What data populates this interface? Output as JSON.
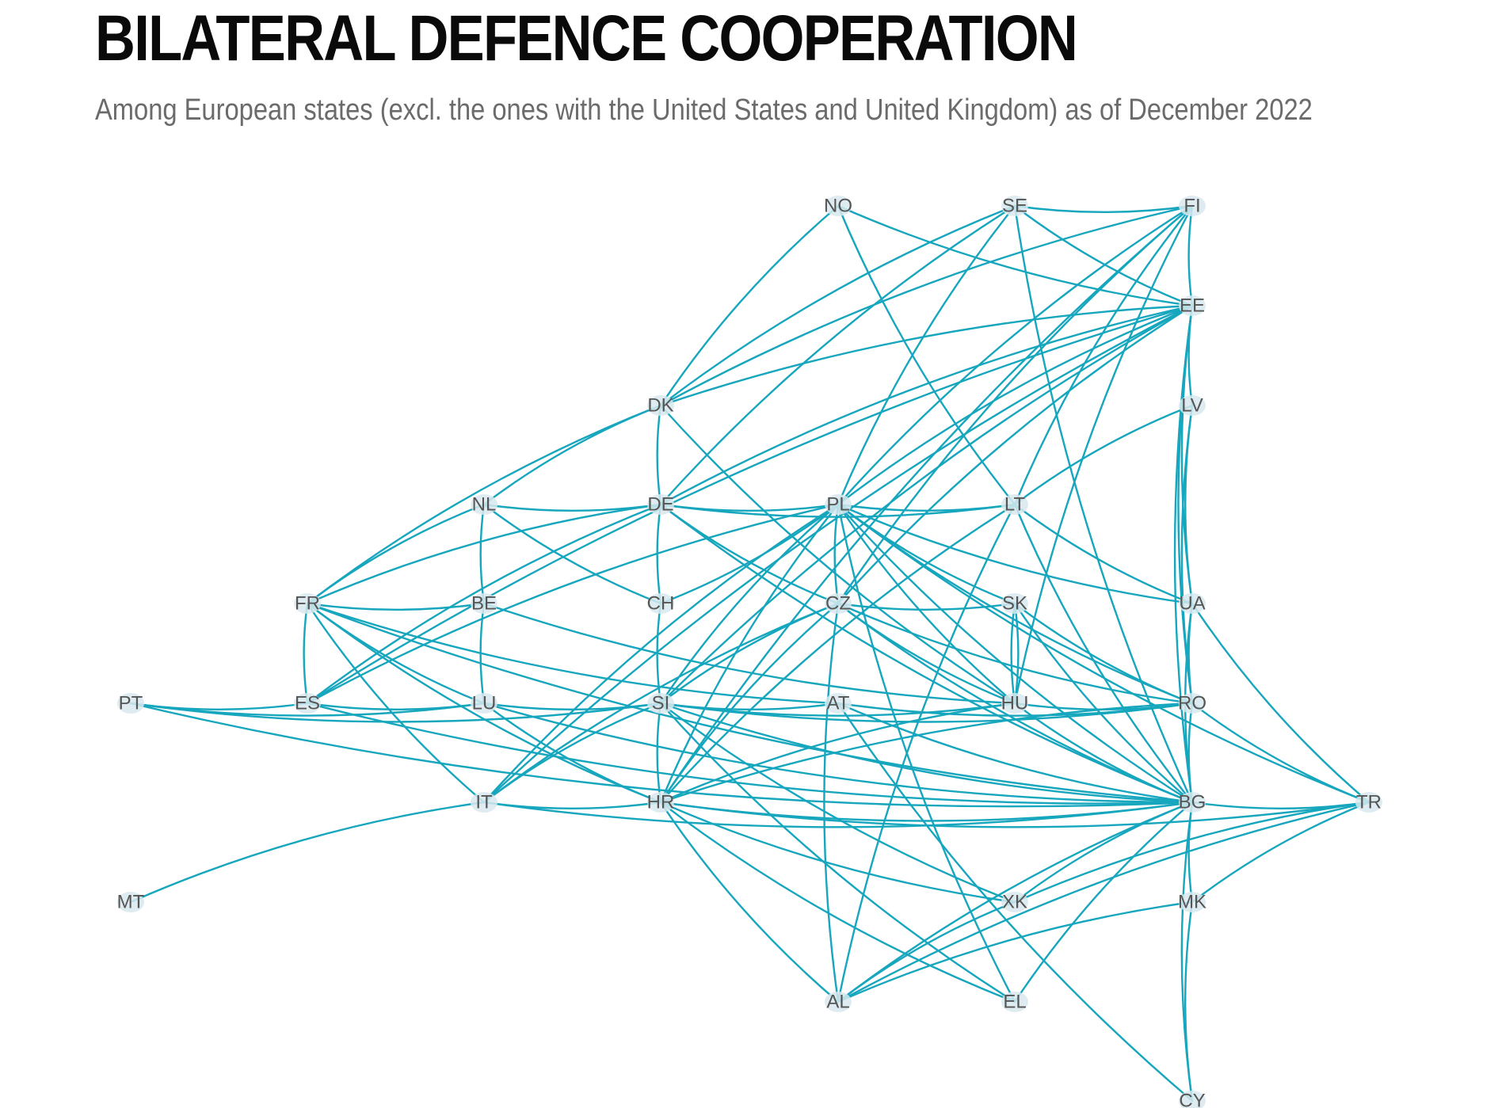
{
  "header": {
    "title": "BILATERAL DEFENCE COOPERATION",
    "subtitle": "Among European states (excl. the ones with the United States and United Kingdom) as of December 2022"
  },
  "colors": {
    "edge": "#16a6bd",
    "label": "#555555",
    "halo": "#d8e9ee"
  },
  "network": {
    "nodes": [
      {
        "id": "NO",
        "label": "NO"
      },
      {
        "id": "SE",
        "label": "SE"
      },
      {
        "id": "FI",
        "label": "FI"
      },
      {
        "id": "EE",
        "label": "EE"
      },
      {
        "id": "DK",
        "label": "DK"
      },
      {
        "id": "LV",
        "label": "LV"
      },
      {
        "id": "NL",
        "label": "NL"
      },
      {
        "id": "DE",
        "label": "DE"
      },
      {
        "id": "PL",
        "label": "PL"
      },
      {
        "id": "LT",
        "label": "LT"
      },
      {
        "id": "FR",
        "label": "FR"
      },
      {
        "id": "BE",
        "label": "BE"
      },
      {
        "id": "CH",
        "label": "CH"
      },
      {
        "id": "CZ",
        "label": "CZ"
      },
      {
        "id": "SK",
        "label": "SK"
      },
      {
        "id": "UA",
        "label": "UA"
      },
      {
        "id": "PT",
        "label": "PT"
      },
      {
        "id": "ES",
        "label": "ES"
      },
      {
        "id": "LU",
        "label": "LU"
      },
      {
        "id": "SI",
        "label": "SI"
      },
      {
        "id": "AT",
        "label": "AT"
      },
      {
        "id": "HU",
        "label": "HU"
      },
      {
        "id": "RO",
        "label": "RO"
      },
      {
        "id": "IT",
        "label": "IT"
      },
      {
        "id": "HR",
        "label": "HR"
      },
      {
        "id": "BG",
        "label": "BG"
      },
      {
        "id": "TR",
        "label": "TR"
      },
      {
        "id": "MT",
        "label": "MT"
      },
      {
        "id": "XK",
        "label": "XK"
      },
      {
        "id": "MK",
        "label": "MK"
      },
      {
        "id": "AL",
        "label": "AL"
      },
      {
        "id": "EL",
        "label": "EL"
      },
      {
        "id": "CY",
        "label": "CY"
      }
    ],
    "edges": [
      [
        "SE",
        "FI"
      ],
      [
        "SE",
        "EE"
      ],
      [
        "SE",
        "DK"
      ],
      [
        "SE",
        "DE"
      ],
      [
        "SE",
        "PL"
      ],
      [
        "SE",
        "BG"
      ],
      [
        "NO",
        "EE"
      ],
      [
        "NO",
        "DK"
      ],
      [
        "NO",
        "LT"
      ],
      [
        "FI",
        "EE"
      ],
      [
        "FI",
        "DK"
      ],
      [
        "FI",
        "PL"
      ],
      [
        "FI",
        "LT"
      ],
      [
        "FI",
        "CZ"
      ],
      [
        "FI",
        "HU"
      ],
      [
        "FI",
        "HR"
      ],
      [
        "EE",
        "DK"
      ],
      [
        "EE",
        "DE"
      ],
      [
        "EE",
        "PL"
      ],
      [
        "EE",
        "LV"
      ],
      [
        "EE",
        "UA"
      ],
      [
        "EE",
        "BG"
      ],
      [
        "EE",
        "SI"
      ],
      [
        "EE",
        "ES"
      ],
      [
        "EE",
        "IT"
      ],
      [
        "EE",
        "RO"
      ],
      [
        "EE",
        "CZ"
      ],
      [
        "LV",
        "LT"
      ],
      [
        "LV",
        "UA"
      ],
      [
        "LV",
        "RO"
      ],
      [
        "DK",
        "NL"
      ],
      [
        "DK",
        "DE"
      ],
      [
        "DK",
        "FR"
      ],
      [
        "DK",
        "HU"
      ],
      [
        "NL",
        "DE"
      ],
      [
        "NL",
        "BE"
      ],
      [
        "NL",
        "FR"
      ],
      [
        "NL",
        "CH"
      ],
      [
        "DE",
        "PL"
      ],
      [
        "DE",
        "FR"
      ],
      [
        "DE",
        "ES"
      ],
      [
        "DE",
        "CH"
      ],
      [
        "DE",
        "LT"
      ],
      [
        "DE",
        "CZ"
      ],
      [
        "DE",
        "BG"
      ],
      [
        "PL",
        "LT"
      ],
      [
        "PL",
        "CZ"
      ],
      [
        "PL",
        "SK"
      ],
      [
        "PL",
        "HU"
      ],
      [
        "PL",
        "SI"
      ],
      [
        "PL",
        "HR"
      ],
      [
        "PL",
        "IT"
      ],
      [
        "PL",
        "ES"
      ],
      [
        "PL",
        "BG"
      ],
      [
        "PL",
        "RO"
      ],
      [
        "PL",
        "EL"
      ],
      [
        "PL",
        "TR"
      ],
      [
        "PL",
        "UA"
      ],
      [
        "LT",
        "UA"
      ],
      [
        "LT",
        "BG"
      ],
      [
        "LT",
        "HR"
      ],
      [
        "LT",
        "AL"
      ],
      [
        "FR",
        "BE"
      ],
      [
        "FR",
        "ES"
      ],
      [
        "FR",
        "LU"
      ],
      [
        "FR",
        "IT"
      ],
      [
        "FR",
        "HR"
      ],
      [
        "FR",
        "AT"
      ],
      [
        "FR",
        "BG"
      ],
      [
        "BE",
        "LU"
      ],
      [
        "BE",
        "HU"
      ],
      [
        "CH",
        "SI"
      ],
      [
        "CH",
        "PL"
      ],
      [
        "CZ",
        "SK"
      ],
      [
        "CZ",
        "SI"
      ],
      [
        "CZ",
        "HU"
      ],
      [
        "CZ",
        "BG"
      ],
      [
        "CZ",
        "RO"
      ],
      [
        "CZ",
        "HR"
      ],
      [
        "CZ",
        "AL"
      ],
      [
        "CZ",
        "IT"
      ],
      [
        "SK",
        "HU"
      ],
      [
        "SK",
        "BG"
      ],
      [
        "SK",
        "RO"
      ],
      [
        "UA",
        "RO"
      ],
      [
        "UA",
        "BG"
      ],
      [
        "UA",
        "TR"
      ],
      [
        "PT",
        "ES"
      ],
      [
        "PT",
        "LU"
      ],
      [
        "PT",
        "BG"
      ],
      [
        "PT",
        "SI"
      ],
      [
        "ES",
        "LU"
      ],
      [
        "ES",
        "BG"
      ],
      [
        "LU",
        "SI"
      ],
      [
        "LU",
        "HR"
      ],
      [
        "LU",
        "BG"
      ],
      [
        "SI",
        "HR"
      ],
      [
        "SI",
        "IT"
      ],
      [
        "SI",
        "AT"
      ],
      [
        "SI",
        "BG"
      ],
      [
        "SI",
        "RO"
      ],
      [
        "SI",
        "HU"
      ],
      [
        "SI",
        "XK"
      ],
      [
        "SI",
        "EL"
      ],
      [
        "AT",
        "BG"
      ],
      [
        "AT",
        "RO"
      ],
      [
        "AT",
        "CY"
      ],
      [
        "HU",
        "RO"
      ],
      [
        "HU",
        "BG"
      ],
      [
        "HU",
        "HR"
      ],
      [
        "HU",
        "SK"
      ],
      [
        "RO",
        "BG"
      ],
      [
        "RO",
        "TR"
      ],
      [
        "RO",
        "HR"
      ],
      [
        "IT",
        "HR"
      ],
      [
        "IT",
        "MT"
      ],
      [
        "IT",
        "BG"
      ],
      [
        "HR",
        "BG"
      ],
      [
        "HR",
        "AL"
      ],
      [
        "HR",
        "EL"
      ],
      [
        "HR",
        "XK"
      ],
      [
        "HR",
        "TR"
      ],
      [
        "BG",
        "TR"
      ],
      [
        "BG",
        "XK"
      ],
      [
        "BG",
        "MK"
      ],
      [
        "BG",
        "AL"
      ],
      [
        "BG",
        "EL"
      ],
      [
        "BG",
        "CY"
      ],
      [
        "TR",
        "MK"
      ],
      [
        "TR",
        "AL"
      ],
      [
        "TR",
        "XK"
      ],
      [
        "MK",
        "AL"
      ],
      [
        "MK",
        "CY"
      ],
      [
        "XK",
        "AL"
      ]
    ]
  }
}
